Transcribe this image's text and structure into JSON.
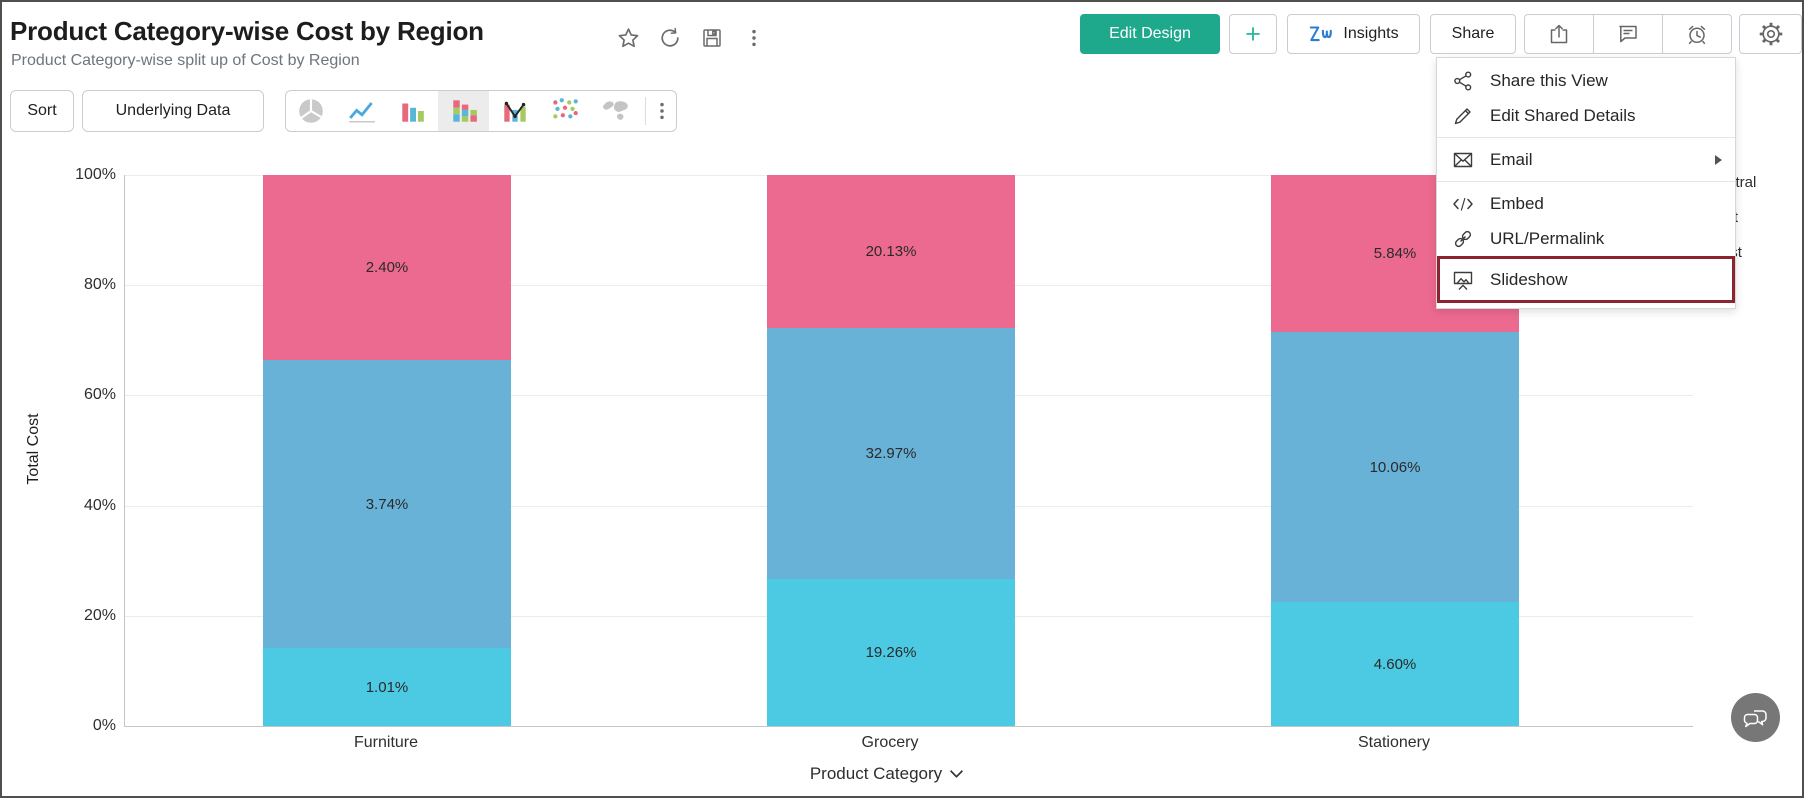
{
  "header": {
    "title": "Product Category-wise Cost by Region",
    "subtitle": "Product Category-wise split up of Cost by Region",
    "title_icons": [
      "star",
      "refresh",
      "save",
      "more-vertical"
    ],
    "actions": {
      "edit_design": "Edit Design",
      "plus": "+",
      "insights": "Insights",
      "share": "Share"
    },
    "icon_buttons": [
      "export",
      "comment",
      "alarm",
      "gear"
    ]
  },
  "toolbar": {
    "sort": "Sort",
    "underlying_data": "Underlying Data",
    "chart_types": [
      {
        "name": "pie-chart",
        "selected": false
      },
      {
        "name": "line-chart",
        "selected": false
      },
      {
        "name": "bar-chart",
        "selected": false
      },
      {
        "name": "stacked-bar-chart",
        "selected": true
      },
      {
        "name": "combo-chart",
        "selected": false
      },
      {
        "name": "scatter-chart",
        "selected": false
      },
      {
        "name": "map-chart",
        "selected": false
      }
    ],
    "more_icon": "more-vertical"
  },
  "share_menu": {
    "highlight_color": "#8d2230",
    "items": [
      {
        "label": "Share this View",
        "icon": "share-nodes"
      },
      {
        "label": "Edit Shared Details",
        "icon": "pencil"
      },
      {
        "label": "Email",
        "icon": "envelope",
        "has_submenu": true,
        "divider_before": true
      },
      {
        "label": "Embed",
        "icon": "code",
        "divider_before": true
      },
      {
        "label": "URL/Permalink",
        "icon": "link"
      },
      {
        "label": "Slideshow",
        "icon": "slideshow",
        "highlighted": true
      }
    ]
  },
  "chart_data": {
    "type": "bar",
    "stacked": true,
    "percent_stacked": true,
    "categories": [
      "Furniture",
      "Grocery",
      "Stationery"
    ],
    "series": [
      {
        "name": "Central",
        "color": "#4ccae4",
        "values": [
          1.01,
          19.26,
          4.6
        ]
      },
      {
        "name": "East",
        "color": "#68b2d8",
        "values": [
          3.74,
          32.97,
          10.06
        ]
      },
      {
        "name": "West",
        "color": "#ec6a90",
        "values": [
          2.4,
          20.13,
          5.84
        ]
      }
    ],
    "segment_labels": [
      [
        "1.01%",
        "19.26%",
        "4.60%"
      ],
      [
        "3.74%",
        "32.97%",
        "10.06%"
      ],
      [
        "2.40%",
        "20.13%",
        "5.84%"
      ]
    ],
    "ylabel": "Total Cost",
    "xlabel": "Product Category",
    "yticks": [
      "0%",
      "20%",
      "40%",
      "60%",
      "80%",
      "100%"
    ],
    "ylim": [
      0,
      100
    ],
    "grid": true,
    "legend_position": "right",
    "legend": [
      "Central",
      "East",
      "West"
    ]
  },
  "feedback_button": {
    "icon": "chat-bubbles"
  }
}
